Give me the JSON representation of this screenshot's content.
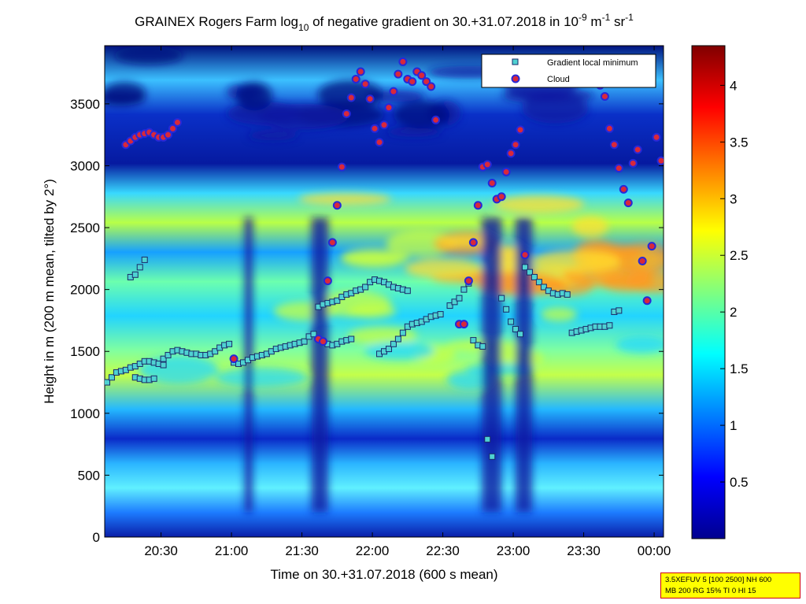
{
  "chart_data": {
    "type": "heatmap",
    "title": {
      "prefix": "GRAINEX Rogers Farm log",
      "sub": "10",
      "middle": " of negative gradient on 30.+31.07.2018 in 10",
      "sup1": "-9",
      "unit1": " m",
      "sup2": "-1",
      "unit2": " sr",
      "sup3": "-1"
    },
    "xlabel": "Time on 30.+31.07.2018 (600 s mean)",
    "ylabel": "Height in m (200 m mean, tilted by 2°)",
    "xlim": [
      "20:06",
      "00:04"
    ],
    "x_ticks": [
      "20:30",
      "21:00",
      "21:30",
      "22:00",
      "22:30",
      "23:00",
      "23:30",
      "00:00"
    ],
    "ylim": [
      0,
      3970
    ],
    "y_ticks": [
      0,
      500,
      1000,
      1500,
      2000,
      2500,
      3000,
      3500
    ],
    "colorbar": {
      "colormap": "jet",
      "range": [
        0,
        4.35
      ],
      "ticks": [
        "0.5",
        "1",
        "1.5",
        "2",
        "2.5",
        "3",
        "3.5",
        "4"
      ]
    },
    "legend": {
      "placement": "top-right",
      "entries": [
        {
          "name": "Gradient local minimum",
          "marker": "square",
          "color": "#4fd2d2"
        },
        {
          "name": "Cloud",
          "marker": "circle",
          "color": "#d8283a",
          "edge": "#2828d8"
        }
      ]
    },
    "series": [
      {
        "name": "Gradient local minimum",
        "points": [
          [
            "20:07",
            1250
          ],
          [
            "20:09",
            1290
          ],
          [
            "20:11",
            1330
          ],
          [
            "20:13",
            1340
          ],
          [
            "20:15",
            1350
          ],
          [
            "20:17",
            1370
          ],
          [
            "20:19",
            1380
          ],
          [
            "20:21",
            1400
          ],
          [
            "20:23",
            1420
          ],
          [
            "20:25",
            1420
          ],
          [
            "20:27",
            1410
          ],
          [
            "20:29",
            1400
          ],
          [
            "20:31",
            1390
          ],
          [
            "20:19",
            1290
          ],
          [
            "20:21",
            1280
          ],
          [
            "20:23",
            1270
          ],
          [
            "20:25",
            1270
          ],
          [
            "20:27",
            1280
          ],
          [
            "20:31",
            1440
          ],
          [
            "20:33",
            1470
          ],
          [
            "20:35",
            1500
          ],
          [
            "20:37",
            1510
          ],
          [
            "20:39",
            1500
          ],
          [
            "20:41",
            1490
          ],
          [
            "20:43",
            1480
          ],
          [
            "20:45",
            1480
          ],
          [
            "20:47",
            1470
          ],
          [
            "20:49",
            1470
          ],
          [
            "20:51",
            1480
          ],
          [
            "20:53",
            1500
          ],
          [
            "20:55",
            1530
          ],
          [
            "20:57",
            1550
          ],
          [
            "20:59",
            1560
          ],
          [
            "21:01",
            1410
          ],
          [
            "21:03",
            1400
          ],
          [
            "21:05",
            1410
          ],
          [
            "21:07",
            1430
          ],
          [
            "21:09",
            1450
          ],
          [
            "21:11",
            1460
          ],
          [
            "21:13",
            1470
          ],
          [
            "21:15",
            1480
          ],
          [
            "21:17",
            1500
          ],
          [
            "21:19",
            1520
          ],
          [
            "21:21",
            1530
          ],
          [
            "21:23",
            1540
          ],
          [
            "21:25",
            1550
          ],
          [
            "21:27",
            1560
          ],
          [
            "21:29",
            1570
          ],
          [
            "21:31",
            1580
          ],
          [
            "21:33",
            1620
          ],
          [
            "21:35",
            1640
          ],
          [
            "21:37",
            1860
          ],
          [
            "21:39",
            1880
          ],
          [
            "21:41",
            1890
          ],
          [
            "21:43",
            1900
          ],
          [
            "21:45",
            1910
          ],
          [
            "21:47",
            1940
          ],
          [
            "21:49",
            1960
          ],
          [
            "21:51",
            1970
          ],
          [
            "21:53",
            1990
          ],
          [
            "21:55",
            2000
          ],
          [
            "21:57",
            2020
          ],
          [
            "21:59",
            2060
          ],
          [
            "22:01",
            2080
          ],
          [
            "22:03",
            2070
          ],
          [
            "22:05",
            2060
          ],
          [
            "22:07",
            2040
          ],
          [
            "22:09",
            2020
          ],
          [
            "22:11",
            2010
          ],
          [
            "22:13",
            2000
          ],
          [
            "22:15",
            1990
          ],
          [
            "21:41",
            1560
          ],
          [
            "21:43",
            1550
          ],
          [
            "21:45",
            1560
          ],
          [
            "21:47",
            1580
          ],
          [
            "21:49",
            1590
          ],
          [
            "21:51",
            1600
          ],
          [
            "22:03",
            1480
          ],
          [
            "22:05",
            1500
          ],
          [
            "22:07",
            1520
          ],
          [
            "22:09",
            1560
          ],
          [
            "22:11",
            1600
          ],
          [
            "22:13",
            1650
          ],
          [
            "22:15",
            1700
          ],
          [
            "22:17",
            1720
          ],
          [
            "22:19",
            1730
          ],
          [
            "22:21",
            1740
          ],
          [
            "22:23",
            1760
          ],
          [
            "22:25",
            1780
          ],
          [
            "22:27",
            1790
          ],
          [
            "22:29",
            1800
          ],
          [
            "22:33",
            1870
          ],
          [
            "22:35",
            1900
          ],
          [
            "22:37",
            1930
          ],
          [
            "22:39",
            2000
          ],
          [
            "22:41",
            2050
          ],
          [
            "22:43",
            1590
          ],
          [
            "22:45",
            1550
          ],
          [
            "22:47",
            1540
          ],
          [
            "22:49",
            790
          ],
          [
            "22:51",
            650
          ],
          [
            "22:55",
            1930
          ],
          [
            "22:57",
            1840
          ],
          [
            "22:59",
            1740
          ],
          [
            "23:01",
            1680
          ],
          [
            "23:03",
            1640
          ],
          [
            "23:05",
            2180
          ],
          [
            "23:07",
            2140
          ],
          [
            "23:09",
            2100
          ],
          [
            "23:11",
            2060
          ],
          [
            "23:13",
            2020
          ],
          [
            "23:15",
            1990
          ],
          [
            "23:17",
            1970
          ],
          [
            "23:19",
            1960
          ],
          [
            "23:21",
            1970
          ],
          [
            "23:23",
            1960
          ],
          [
            "23:25",
            1650
          ],
          [
            "23:27",
            1660
          ],
          [
            "23:29",
            1670
          ],
          [
            "23:31",
            1680
          ],
          [
            "23:33",
            1690
          ],
          [
            "23:35",
            1700
          ],
          [
            "23:37",
            1700
          ],
          [
            "23:39",
            1700
          ],
          [
            "23:41",
            1710
          ],
          [
            "23:43",
            1820
          ],
          [
            "23:45",
            1830
          ],
          [
            "20:17",
            2100
          ],
          [
            "20:19",
            2120
          ],
          [
            "20:21",
            2180
          ],
          [
            "20:23",
            2240
          ]
        ]
      },
      {
        "name": "Cloud",
        "points": [
          [
            "20:15",
            3170
          ],
          [
            "20:17",
            3200
          ],
          [
            "20:19",
            3230
          ],
          [
            "20:21",
            3250
          ],
          [
            "20:23",
            3260
          ],
          [
            "20:25",
            3270
          ],
          [
            "20:27",
            3250
          ],
          [
            "20:29",
            3230
          ],
          [
            "20:31",
            3230
          ],
          [
            "20:33",
            3250
          ],
          [
            "20:35",
            3300
          ],
          [
            "20:37",
            3350
          ],
          [
            "21:01",
            1440
          ],
          [
            "21:37",
            1600
          ],
          [
            "21:39",
            1580
          ],
          [
            "21:41",
            2070
          ],
          [
            "21:43",
            2380
          ],
          [
            "21:45",
            2680
          ],
          [
            "21:47",
            2990
          ],
          [
            "21:49",
            3420
          ],
          [
            "21:51",
            3550
          ],
          [
            "21:53",
            3700
          ],
          [
            "21:55",
            3760
          ],
          [
            "21:57",
            3660
          ],
          [
            "21:59",
            3540
          ],
          [
            "22:01",
            3300
          ],
          [
            "22:03",
            3190
          ],
          [
            "22:05",
            3330
          ],
          [
            "22:07",
            3470
          ],
          [
            "22:09",
            3600
          ],
          [
            "22:11",
            3740
          ],
          [
            "22:13",
            3840
          ],
          [
            "22:15",
            3700
          ],
          [
            "22:17",
            3680
          ],
          [
            "22:19",
            3760
          ],
          [
            "22:21",
            3730
          ],
          [
            "22:23",
            3680
          ],
          [
            "22:25",
            3640
          ],
          [
            "22:27",
            3370
          ],
          [
            "22:37",
            1720
          ],
          [
            "22:39",
            1720
          ],
          [
            "22:41",
            2070
          ],
          [
            "22:43",
            2380
          ],
          [
            "22:45",
            2680
          ],
          [
            "22:47",
            2990
          ],
          [
            "22:49",
            3010
          ],
          [
            "22:51",
            2860
          ],
          [
            "22:53",
            2730
          ],
          [
            "22:55",
            2750
          ],
          [
            "22:57",
            2950
          ],
          [
            "22:59",
            3100
          ],
          [
            "23:01",
            3170
          ],
          [
            "23:03",
            3290
          ],
          [
            "23:05",
            2280
          ],
          [
            "23:37",
            3650
          ],
          [
            "23:39",
            3560
          ],
          [
            "23:41",
            3300
          ],
          [
            "23:43",
            3170
          ],
          [
            "23:45",
            2980
          ],
          [
            "23:47",
            2810
          ],
          [
            "23:49",
            2700
          ],
          [
            "23:51",
            3020
          ],
          [
            "23:53",
            3130
          ],
          [
            "23:55",
            2230
          ],
          [
            "23:57",
            1910
          ],
          [
            "23:59",
            2350
          ],
          [
            "00:01",
            3230
          ],
          [
            "00:03",
            3040
          ]
        ]
      }
    ]
  },
  "info_box": {
    "line1": "3.5XEFUV 5 [100 2500] NH 600",
    "line2": "MB 200 RG 15% TI 0 HI 15"
  }
}
